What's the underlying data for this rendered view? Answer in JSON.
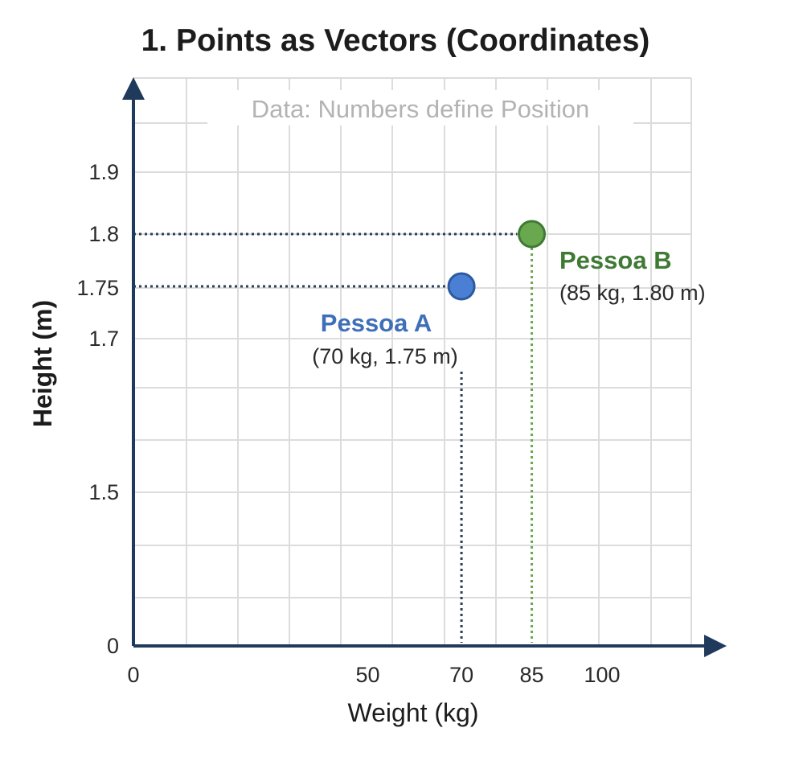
{
  "chart_data": {
    "type": "scatter",
    "title": "1. Points as Vectors (Coordinates)",
    "subtitle": "Data: Numbers define Position",
    "xlabel": "Weight (kg)",
    "ylabel": "Height (m)",
    "x_ticks": [
      "0",
      "50",
      "70",
      "85",
      "100"
    ],
    "y_ticks": [
      "0",
      "1.5",
      "1.7",
      "1.75",
      "1.8",
      "1.9"
    ],
    "grid": true,
    "points": [
      {
        "name": "Pessoa A",
        "x": 70,
        "y": 1.75,
        "label": "(70 kg, 1.75 m)",
        "color": "#4a7fd4",
        "text_color": "#3f6fb8"
      },
      {
        "name": "Pessoa B",
        "x": 85,
        "y": 1.8,
        "label": "(85 kg, 1.80 m)",
        "color": "#6aa84f",
        "text_color": "#3f7a35"
      }
    ],
    "axis_color": "#1f3a5a"
  }
}
